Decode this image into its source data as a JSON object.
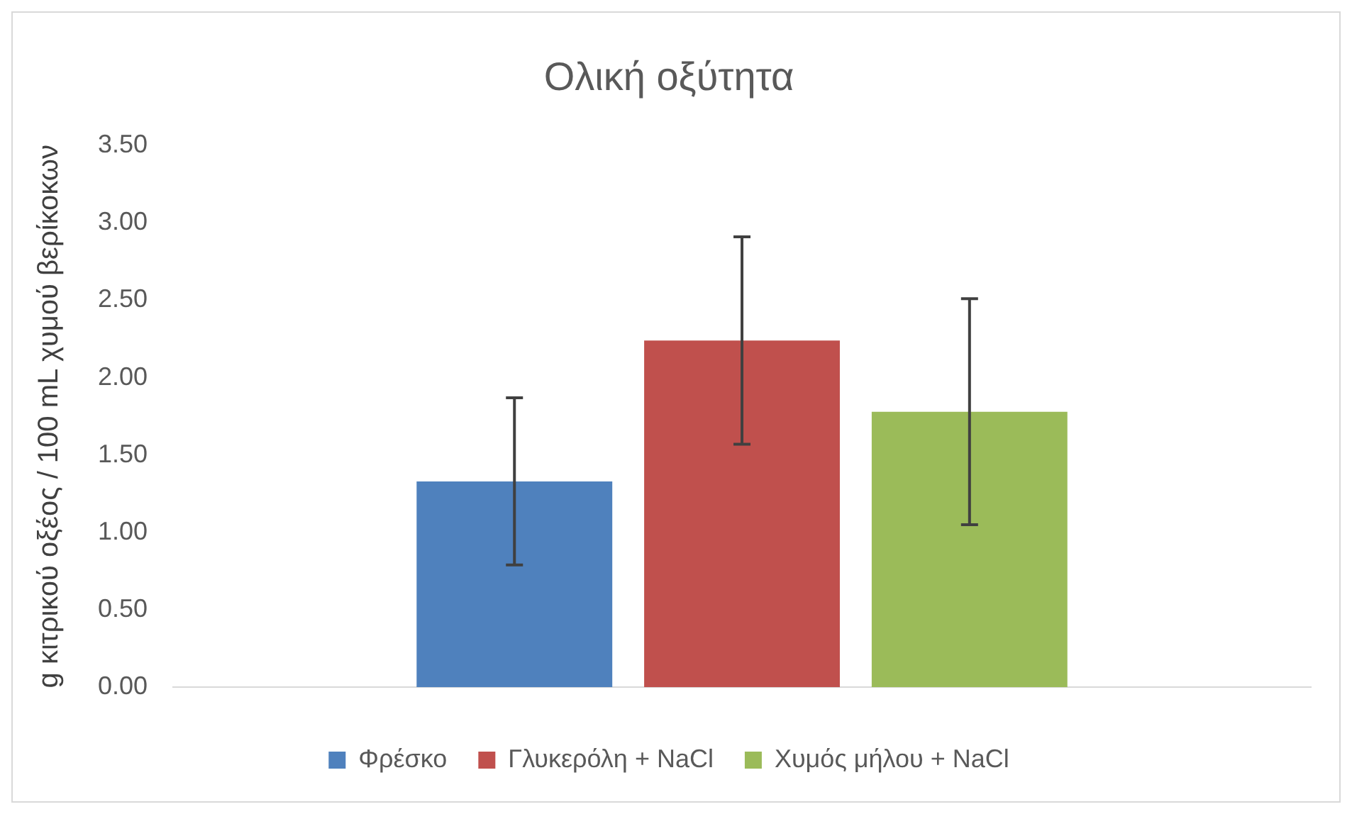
{
  "chart_data": {
    "type": "bar",
    "title": "Ολική οξύτητα",
    "ylabel": "g κιτρικού οξέος / 100 mL χυμού βερίκοκων",
    "categories": [
      null
    ],
    "series": [
      {
        "name": "Φρέσκο",
        "color": "#4f81bd",
        "values": [
          1.33
        ],
        "errors": [
          0.54
        ]
      },
      {
        "name": "Γλυκερόλη + NaCl",
        "color": "#c0504d",
        "values": [
          2.24
        ],
        "errors": [
          0.67
        ]
      },
      {
        "name": "Χυμός μήλου + NaCl",
        "color": "#9bbb59",
        "values": [
          1.78
        ],
        "errors": [
          0.73
        ]
      }
    ],
    "ylim": [
      0,
      3.5
    ],
    "yticks": [
      {
        "value": 0,
        "label": "0.00"
      },
      {
        "value": 0.5,
        "label": "0.50"
      },
      {
        "value": 1,
        "label": "1.00"
      },
      {
        "value": 1.5,
        "label": "1.50"
      },
      {
        "value": 2,
        "label": "2.00"
      },
      {
        "value": 2.5,
        "label": "2.50"
      },
      {
        "value": 3,
        "label": "3.00"
      },
      {
        "value": 3.5,
        "label": "3.50"
      }
    ],
    "grid": false,
    "legend": "bottom"
  }
}
